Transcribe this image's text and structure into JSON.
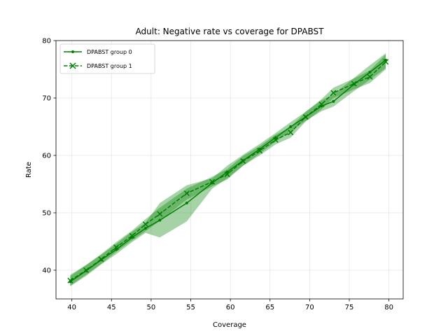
{
  "chart_data": {
    "type": "line",
    "title": "Adult: Negative rate vs coverage for DPABST",
    "xlabel": "Coverage",
    "ylabel": "Rate",
    "xlim": [
      38.0,
      81.8
    ],
    "ylim": [
      35.0,
      80.0
    ],
    "xticks": [
      40,
      45,
      50,
      55,
      60,
      65,
      70,
      75,
      80
    ],
    "yticks": [
      40,
      50,
      60,
      70,
      80
    ],
    "grid": true,
    "legend_position": "top-left",
    "colors": {
      "series": "#008000",
      "band": "#008000"
    },
    "series": [
      {
        "name": "DPABST group 0",
        "style": "solid",
        "marker": "dot",
        "x": [
          39.8,
          41.8,
          43.7,
          45.6,
          47.6,
          49.3,
          51.1,
          54.5,
          57.7,
          59.6,
          61.6,
          63.7,
          65.7,
          67.6,
          69.5,
          71.5,
          73.0,
          75.6,
          77.6,
          79.6
        ],
        "y": [
          38.0,
          39.9,
          41.8,
          43.6,
          45.7,
          47.3,
          48.7,
          51.7,
          55.2,
          57.1,
          59.1,
          61.1,
          63.1,
          65.0,
          66.7,
          68.6,
          69.4,
          72.4,
          74.5,
          76.6
        ],
        "lower": [
          37.2,
          39.0,
          41.0,
          42.8,
          44.9,
          46.5,
          45.7,
          48.5,
          54.2,
          56.0,
          58.2,
          60.3,
          62.4,
          64.2,
          66.0,
          67.7,
          68.5,
          71.2,
          73.2,
          75.2
        ],
        "upper": [
          39.0,
          40.9,
          42.7,
          44.6,
          46.7,
          48.3,
          51.7,
          54.8,
          56.0,
          58.2,
          60.1,
          62.0,
          63.9,
          65.8,
          67.6,
          69.6,
          70.6,
          73.5,
          75.7,
          77.8
        ]
      },
      {
        "name": "DPABST group 1",
        "style": "dashed",
        "marker": "x",
        "x": [
          39.8,
          41.8,
          43.7,
          45.6,
          47.6,
          49.3,
          51.1,
          54.5,
          57.7,
          59.6,
          61.6,
          63.7,
          65.7,
          67.6,
          69.5,
          71.5,
          73.0,
          75.6,
          77.6,
          79.6
        ],
        "y": [
          38.2,
          40.0,
          41.9,
          44.0,
          46.0,
          48.0,
          49.8,
          53.4,
          55.4,
          56.7,
          59.0,
          60.8,
          62.7,
          64.0,
          66.7,
          68.9,
          70.9,
          72.5,
          73.7,
          76.3
        ],
        "lower": [
          37.3,
          39.2,
          41.1,
          43.2,
          45.2,
          46.8,
          48.6,
          52.3,
          54.6,
          55.8,
          58.2,
          60.0,
          61.9,
          63.1,
          65.9,
          68.0,
          70.0,
          71.5,
          72.6,
          75.0
        ],
        "upper": [
          39.2,
          40.9,
          42.8,
          44.9,
          46.9,
          48.9,
          50.9,
          54.2,
          56.3,
          57.6,
          59.9,
          61.6,
          63.6,
          64.9,
          67.6,
          69.8,
          71.8,
          73.4,
          74.8,
          77.6
        ]
      }
    ]
  }
}
